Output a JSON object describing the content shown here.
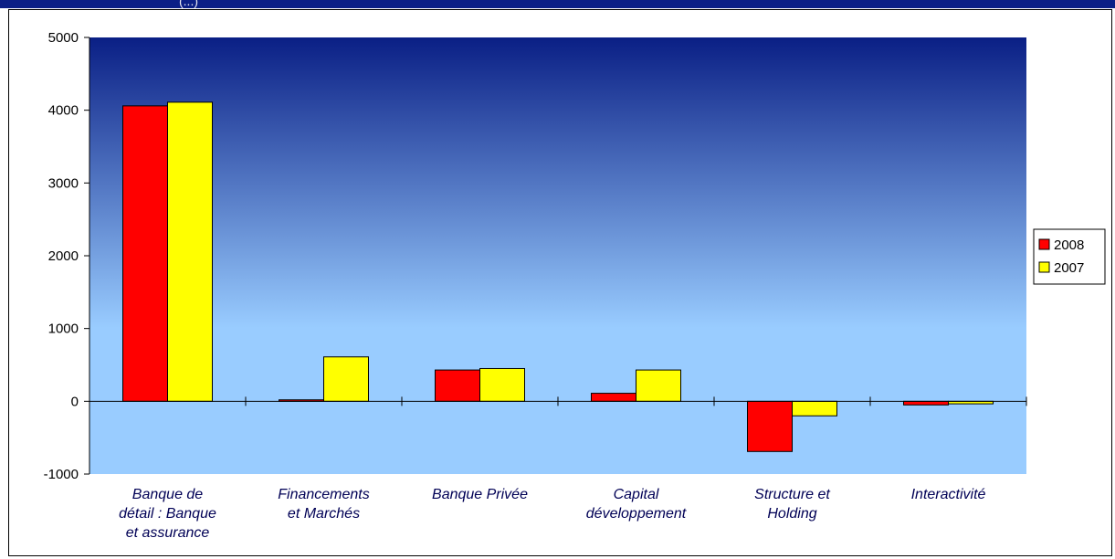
{
  "header": {
    "partial_text": "(...)"
  },
  "chart_data": {
    "type": "bar",
    "categories": [
      [
        "Banque de",
        "détail : Banque",
        "et assurance"
      ],
      [
        "Financements",
        "et Marchés"
      ],
      [
        "Banque Privée"
      ],
      [
        "Capital",
        "développement"
      ],
      [
        "Structure et",
        "Holding"
      ],
      [
        "Interactivité"
      ]
    ],
    "series": [
      {
        "name": "2008",
        "color": "#ff0000",
        "values": [
          4060,
          20,
          430,
          110,
          -690,
          -50
        ]
      },
      {
        "name": "2007",
        "color": "#ffff00",
        "values": [
          4110,
          610,
          450,
          430,
          -200,
          -35
        ]
      }
    ],
    "ylim": [
      -1000,
      5000
    ],
    "yticks": [
      "-1000",
      "0",
      "1000",
      "2000",
      "3000",
      "4000",
      "5000"
    ],
    "grid": false,
    "legend": "right",
    "background_gradient": [
      "#0a1f85",
      "#99ccff"
    ]
  }
}
